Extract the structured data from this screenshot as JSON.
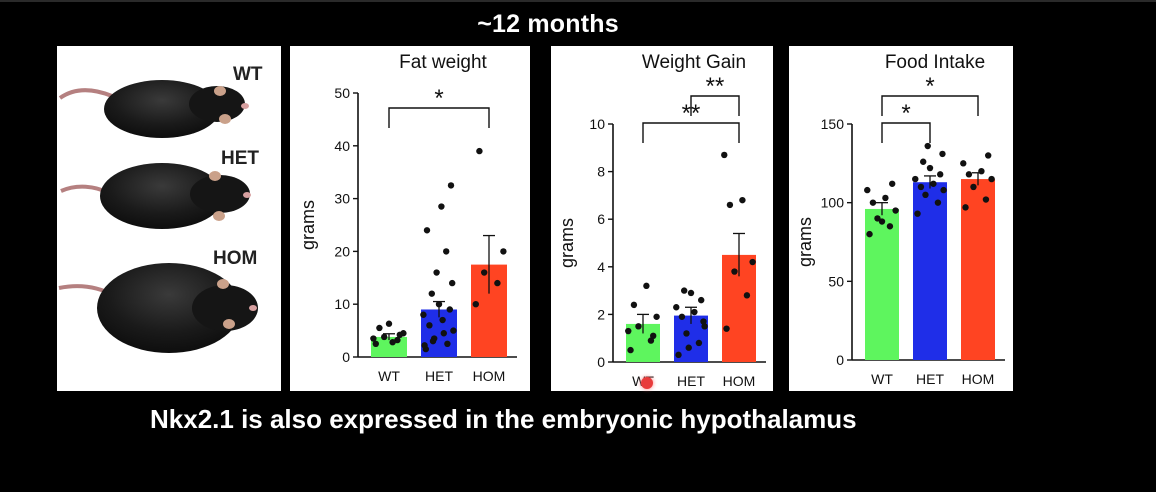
{
  "slide": {
    "title": "~12 months",
    "caption": "Nkx2.1 is also expressed in the embryonic hypothalamus"
  },
  "photo": {
    "labels": [
      "WT",
      "HET",
      "HOM"
    ]
  },
  "colors": {
    "WT": "#5ef55e",
    "HET": "#1f2ee8",
    "HOM": "#ff4422",
    "pointer": "#e83b3b"
  },
  "chart_data": [
    {
      "type": "bar",
      "title": "Fat weight",
      "ylabel": "grams",
      "categories": [
        "WT",
        "HET",
        "HOM"
      ],
      "values": [
        3.8,
        9,
        17.5
      ],
      "errors": [
        0.6,
        1.5,
        5.5
      ],
      "ylim": [
        0,
        50
      ],
      "yticks": [
        0,
        10,
        20,
        30,
        40,
        50
      ],
      "points": [
        [
          2.5,
          3.2,
          3.8,
          4.5,
          5.5,
          2.8,
          3.5,
          4.2,
          6.3
        ],
        [
          1.5,
          2.5,
          3.5,
          5,
          6,
          7,
          8,
          9,
          10,
          12,
          14,
          16,
          20,
          24,
          28.5,
          32.5,
          3,
          4.5,
          2.2
        ],
        [
          10,
          14,
          16,
          20,
          39
        ]
      ],
      "significance": [
        {
          "from": "WT",
          "to": "HOM",
          "label": "*"
        }
      ]
    },
    {
      "type": "bar",
      "title": "Weight Gain",
      "ylabel": "grams",
      "categories": [
        "WT",
        "HET",
        "HOM"
      ],
      "values": [
        1.6,
        1.95,
        4.5
      ],
      "errors": [
        0.4,
        0.35,
        0.9
      ],
      "ylim": [
        0,
        10
      ],
      "yticks": [
        0,
        2,
        4,
        6,
        8,
        10
      ],
      "points": [
        [
          0.5,
          0.9,
          1.5,
          1.9,
          2.4,
          3.2,
          1.3,
          1.1
        ],
        [
          0.3,
          0.8,
          1.2,
          1.5,
          1.9,
          2.1,
          2.3,
          2.6,
          2.9,
          3.0,
          1.7,
          0.6
        ],
        [
          1.4,
          2.8,
          3.8,
          4.2,
          6.6,
          6.8,
          8.7
        ]
      ],
      "significance": [
        {
          "from": "WT",
          "to": "HOM",
          "label": "**"
        },
        {
          "from": "HET",
          "to": "HOM",
          "label": "**"
        }
      ]
    },
    {
      "type": "bar",
      "title": "Food Intake",
      "ylabel": "grams",
      "categories": [
        "WT",
        "HET",
        "HOM"
      ],
      "values": [
        96,
        113,
        115
      ],
      "errors": [
        4,
        4,
        4
      ],
      "ylim": [
        0,
        150
      ],
      "yticks": [
        0,
        50,
        100,
        150
      ],
      "points": [
        [
          80,
          85,
          90,
          95,
          100,
          103,
          108,
          112,
          88
        ],
        [
          93,
          100,
          105,
          108,
          110,
          112,
          115,
          118,
          122,
          126,
          131,
          136
        ],
        [
          97,
          102,
          110,
          115,
          118,
          120,
          125,
          130
        ]
      ],
      "significance": [
        {
          "from": "WT",
          "to": "HET",
          "label": "*"
        },
        {
          "from": "WT",
          "to": "HOM",
          "label": "*"
        }
      ]
    }
  ]
}
